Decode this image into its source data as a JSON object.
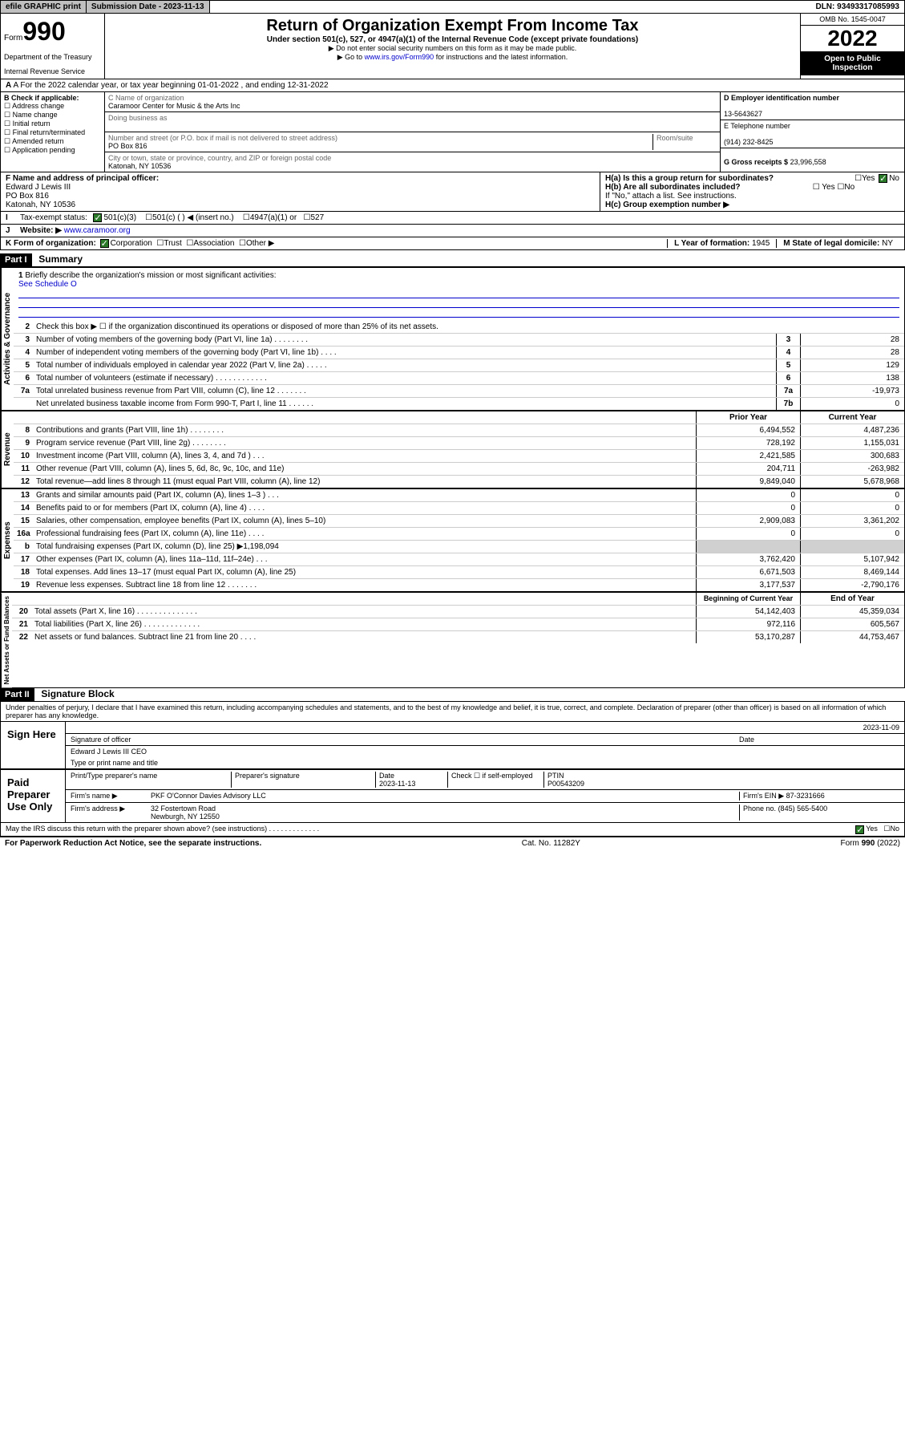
{
  "topbar": {
    "efile": "efile GRAPHIC print",
    "submission": "Submission Date - 2023-11-13",
    "dln": "DLN: 93493317085993"
  },
  "header": {
    "form_word": "Form",
    "form_num": "990",
    "dept": "Department of the Treasury",
    "irs": "Internal Revenue Service",
    "title": "Return of Organization Exempt From Income Tax",
    "subtitle": "Under section 501(c), 527, or 4947(a)(1) of the Internal Revenue Code (except private foundations)",
    "note1": "▶ Do not enter social security numbers on this form as it may be made public.",
    "note2_pre": "▶ Go to ",
    "note2_link": "www.irs.gov/Form990",
    "note2_post": " for instructions and the latest information.",
    "omb": "OMB No. 1545-0047",
    "year": "2022",
    "inspection": "Open to Public Inspection"
  },
  "rowA": "A For the 2022 calendar year, or tax year beginning 01-01-2022    , and ending 12-31-2022",
  "colB": {
    "header": "B Check if applicable:",
    "items": [
      "Address change",
      "Name change",
      "Initial return",
      "Final return/terminated",
      "Amended return",
      "Application pending"
    ]
  },
  "colC": {
    "name_label": "C Name of organization",
    "name": "Caramoor Center for Music & the Arts Inc",
    "dba_label": "Doing business as",
    "street_label": "Number and street (or P.O. box if mail is not delivered to street address)",
    "room_label": "Room/suite",
    "street": "PO Box 816",
    "city_label": "City or town, state or province, country, and ZIP or foreign postal code",
    "city": "Katonah, NY  10536"
  },
  "colD": {
    "ein_label": "D Employer identification number",
    "ein": "13-5643627",
    "phone_label": "E Telephone number",
    "phone": "(914) 232-8425",
    "gross_label": "G Gross receipts $",
    "gross": "23,996,558"
  },
  "rowF": {
    "label": "F  Name and address of principal officer:",
    "name": "Edward J Lewis III",
    "addr1": "PO Box 816",
    "addr2": "Katonah, NY  10536"
  },
  "rowH": {
    "ha": "H(a)  Is this a group return for subordinates?",
    "hb": "H(b)  Are all subordinates included?",
    "hb_note": "If \"No,\" attach a list. See instructions.",
    "hc": "H(c)  Group exemption number ▶"
  },
  "rowI": {
    "label": "Tax-exempt status:",
    "opts": [
      "501(c)(3)",
      "501(c) (   ) ◀ (insert no.)",
      "4947(a)(1) or",
      "527"
    ]
  },
  "rowJ": {
    "label": "Website: ▶",
    "value": "www.caramoor.org"
  },
  "rowK": {
    "label": "K Form of organization:",
    "opts": [
      "Corporation",
      "Trust",
      "Association",
      "Other ▶"
    ]
  },
  "rowL": {
    "label": "L Year of formation:",
    "value": "1945"
  },
  "rowM": {
    "label": "M State of legal domicile:",
    "value": "NY"
  },
  "part1": {
    "header": "Part I",
    "title": "Summary",
    "q1": "Briefly describe the organization's mission or most significant activities:",
    "q1_ans": "See Schedule O",
    "q2": "Check this box ▶ ☐  if the organization discontinued its operations or disposed of more than 25% of its net assets.",
    "sections": {
      "gov": "Activities & Governance",
      "rev": "Revenue",
      "exp": "Expenses",
      "net": "Net Assets or Fund Balances"
    },
    "simple_lines": [
      {
        "n": "3",
        "label": "Number of voting members of the governing body (Part VI, line 1a)   .    .    .    .    .    .    .    .",
        "box": "3",
        "val": "28"
      },
      {
        "n": "4",
        "label": "Number of independent voting members of the governing body (Part VI, line 1b)   .    .    .    .",
        "box": "4",
        "val": "28"
      },
      {
        "n": "5",
        "label": "Total number of individuals employed in calendar year 2022 (Part V, line 2a)   .    .    .    .    .",
        "box": "5",
        "val": "129"
      },
      {
        "n": "6",
        "label": "Total number of volunteers (estimate if necessary)    .    .    .    .    .    .    .    .    .    .    .    .",
        "box": "6",
        "val": "138"
      },
      {
        "n": "7a",
        "label": "Total unrelated business revenue from Part VIII, column (C), line 12    .    .    .    .    .    .    .",
        "box": "7a",
        "val": "-19,973"
      },
      {
        "n": "",
        "label": "Net unrelated business taxable income from Form 990-T, Part I, line 11    .    .    .    .    .    .",
        "box": "7b",
        "val": "0"
      }
    ],
    "col_headers": {
      "prior": "Prior Year",
      "current": "Current Year",
      "boy": "Beginning of Current Year",
      "eoy": "End of Year"
    },
    "revenue": [
      {
        "n": "8",
        "label": "Contributions and grants (Part VIII, line 1h)    .    .    .    .    .    .    .    .",
        "p": "6,494,552",
        "c": "4,487,236"
      },
      {
        "n": "9",
        "label": "Program service revenue (Part VIII, line 2g)    .    .    .    .    .    .    .    .",
        "p": "728,192",
        "c": "1,155,031"
      },
      {
        "n": "10",
        "label": "Investment income (Part VIII, column (A), lines 3, 4, and 7d )    .    .    .",
        "p": "2,421,585",
        "c": "300,683"
      },
      {
        "n": "11",
        "label": "Other revenue (Part VIII, column (A), lines 5, 6d, 8c, 9c, 10c, and 11e)",
        "p": "204,711",
        "c": "-263,982"
      },
      {
        "n": "12",
        "label": "Total revenue—add lines 8 through 11 (must equal Part VIII, column (A), line 12)",
        "p": "9,849,040",
        "c": "5,678,968"
      }
    ],
    "expenses": [
      {
        "n": "13",
        "label": "Grants and similar amounts paid (Part IX, column (A), lines 1–3 )    .    .    .",
        "p": "0",
        "c": "0"
      },
      {
        "n": "14",
        "label": "Benefits paid to or for members (Part IX, column (A), line 4)    .    .    .    .",
        "p": "0",
        "c": "0"
      },
      {
        "n": "15",
        "label": "Salaries, other compensation, employee benefits (Part IX, column (A), lines 5–10)",
        "p": "2,909,083",
        "c": "3,361,202"
      },
      {
        "n": "16a",
        "label": "Professional fundraising fees (Part IX, column (A), line 11e)    .    .    .    .",
        "p": "0",
        "c": "0"
      },
      {
        "n": "b",
        "label": "Total fundraising expenses (Part IX, column (D), line 25) ▶1,198,094",
        "p": "",
        "c": "",
        "grey": true
      },
      {
        "n": "17",
        "label": "Other expenses (Part IX, column (A), lines 11a–11d, 11f–24e)    .    .    .",
        "p": "3,762,420",
        "c": "5,107,942"
      },
      {
        "n": "18",
        "label": "Total expenses. Add lines 13–17 (must equal Part IX, column (A), line 25)",
        "p": "6,671,503",
        "c": "8,469,144"
      },
      {
        "n": "19",
        "label": "Revenue less expenses. Subtract line 18 from line 12   .    .    .    .    .    .    .",
        "p": "3,177,537",
        "c": "-2,790,176"
      }
    ],
    "netassets": [
      {
        "n": "20",
        "label": "Total assets (Part X, line 16)    .    .    .    .    .    .    .    .    .    .    .    .    .    .",
        "p": "54,142,403",
        "c": "45,359,034"
      },
      {
        "n": "21",
        "label": "Total liabilities (Part X, line 26)    .    .    .    .    .    .    .    .    .    .    .    .    .",
        "p": "972,116",
        "c": "605,567"
      },
      {
        "n": "22",
        "label": "Net assets or fund balances. Subtract line 21 from line 20    .    .    .    .",
        "p": "53,170,287",
        "c": "44,753,467"
      }
    ]
  },
  "part2": {
    "header": "Part II",
    "title": "Signature Block",
    "declaration": "Under penalties of perjury, I declare that I have examined this return, including accompanying schedules and statements, and to the best of my knowledge and belief, it is true, correct, and complete. Declaration of preparer (other than officer) is based on all information of which preparer has any knowledge.",
    "sign_here": "Sign Here",
    "sig_date": "2023-11-09",
    "sig_officer_label": "Signature of officer",
    "date_label": "Date",
    "officer_name": "Edward J Lewis III CEO",
    "type_label": "Type or print name and title",
    "paid_prep": "Paid Preparer Use Only",
    "prep_name_label": "Print/Type preparer's name",
    "prep_sig_label": "Preparer's signature",
    "prep_date_label": "Date",
    "prep_date": "2023-11-13",
    "check_if": "Check ☐ if self-employed",
    "ptin_label": "PTIN",
    "ptin": "P00543209",
    "firm_name_label": "Firm's name    ▶",
    "firm_name": "PKF O'Connor Davies Advisory LLC",
    "firm_ein_label": "Firm's EIN ▶",
    "firm_ein": "87-3231666",
    "firm_addr_label": "Firm's address ▶",
    "firm_addr1": "32 Fostertown Road",
    "firm_addr2": "Newburgh, NY  12550",
    "phone_label": "Phone no.",
    "phone": "(845) 565-5400",
    "discuss": "May the IRS discuss this return with the preparer shown above? (see instructions)    .    .    .    .    .    .    .    .    .    .    .    .    ."
  },
  "footer": {
    "left": "For Paperwork Reduction Act Notice, see the separate instructions.",
    "mid": "Cat. No. 11282Y",
    "right": "Form 990 (2022)"
  }
}
